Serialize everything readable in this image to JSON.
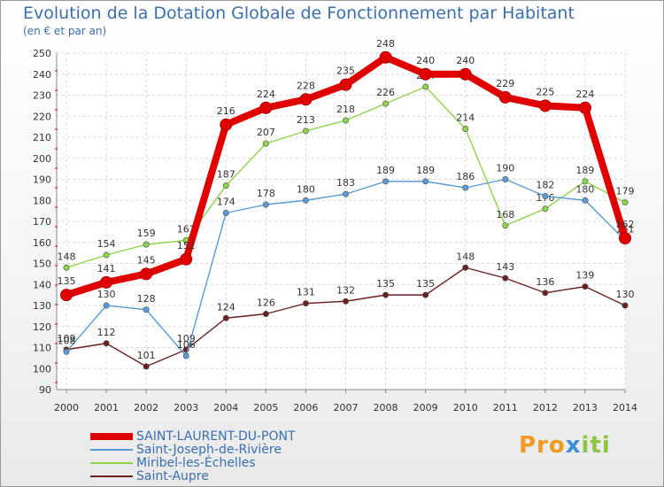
{
  "title": "Evolution de la Dotation Globale de Fonctionnement par Habitant",
  "subtitle": "(en € et par an)",
  "logo": {
    "p": "Pro",
    "x": "x",
    "i": "iti"
  },
  "chart_data": {
    "type": "line",
    "title": "Evolution de la Dotation Globale de Fonctionnement par Habitant",
    "ylabel": "(en € et par an)",
    "xlabel": "",
    "ylim": [
      90,
      250
    ],
    "yticks": [
      90,
      100,
      110,
      120,
      130,
      140,
      150,
      160,
      170,
      180,
      190,
      200,
      210,
      220,
      230,
      240,
      250
    ],
    "categories": [
      "2000",
      "2001",
      "2002",
      "2003",
      "2004",
      "2005",
      "2006",
      "2007",
      "2008",
      "2009",
      "2010",
      "2011",
      "2012",
      "2013",
      "2014"
    ],
    "grid": true,
    "legend_position": "bottom-left",
    "series": [
      {
        "name": "SAINT-LAURENT-DU-PONT",
        "color": "#e00000",
        "emphasis": true,
        "values": [
          135,
          141,
          145,
          152,
          216,
          224,
          228,
          235,
          248,
          240,
          240,
          229,
          225,
          224,
          162
        ]
      },
      {
        "name": "Saint-Joseph-de-Rivière",
        "color": "#5b9bd5",
        "emphasis": false,
        "values": [
          108,
          130,
          128,
          106,
          174,
          178,
          180,
          183,
          189,
          189,
          186,
          190,
          182,
          180,
          161
        ]
      },
      {
        "name": "Miribel-les-Échelles",
        "color": "#8ed44a",
        "emphasis": false,
        "values": [
          148,
          154,
          159,
          161,
          187,
          207,
          213,
          218,
          226,
          234,
          214,
          168,
          176,
          189,
          179
        ]
      },
      {
        "name": "Saint-Aupre",
        "color": "#6b1f1f",
        "emphasis": false,
        "values": [
          109,
          112,
          101,
          109,
          124,
          126,
          131,
          132,
          135,
          135,
          148,
          143,
          136,
          139,
          130
        ]
      }
    ]
  }
}
